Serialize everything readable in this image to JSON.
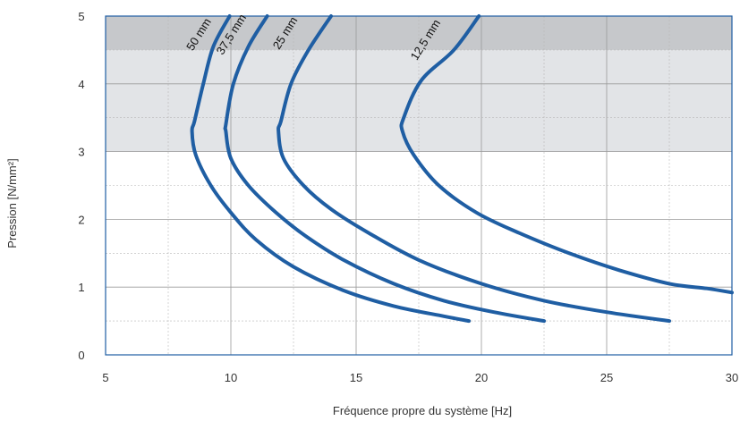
{
  "chart_data": {
    "type": "line",
    "title": "",
    "xlabel": "Fréquence propre du système [Hz]",
    "ylabel": "Pression [N/mm²]",
    "xlim": [
      5,
      30
    ],
    "ylim": [
      0,
      5
    ],
    "x_ticks": [
      5,
      10,
      15,
      20,
      25,
      30
    ],
    "x_tick_labels": [
      "5",
      "10",
      "15",
      "20",
      "25",
      "30"
    ],
    "y_ticks": [
      0,
      1,
      2,
      3,
      4,
      5
    ],
    "y_tick_labels": [
      "0",
      "1",
      "2",
      "3",
      "4",
      "5"
    ],
    "x_minor_step": 2.5,
    "y_minor_step": 0.5,
    "grid": true,
    "bands": [
      {
        "y_from": 3.0,
        "y_to": 4.5,
        "color": "#e2e4e7"
      },
      {
        "y_from": 4.5,
        "y_to": 5.0,
        "color": "#c6c8cb"
      }
    ],
    "line_color": "#1f5ea3",
    "series": [
      {
        "name": "50 mm",
        "points": [
          [
            9.95,
            5.0
          ],
          [
            9.3,
            4.55
          ],
          [
            8.9,
            4.0
          ],
          [
            8.55,
            3.45
          ],
          [
            8.45,
            3.3
          ],
          [
            8.6,
            2.95
          ],
          [
            9.2,
            2.5
          ],
          [
            10.0,
            2.1
          ],
          [
            11.0,
            1.7
          ],
          [
            12.5,
            1.3
          ],
          [
            14.5,
            0.95
          ],
          [
            16.5,
            0.72
          ],
          [
            18.5,
            0.57
          ],
          [
            19.5,
            0.5
          ]
        ]
      },
      {
        "name": "37,5 mm",
        "points": [
          [
            11.45,
            5.0
          ],
          [
            10.7,
            4.55
          ],
          [
            10.1,
            4.0
          ],
          [
            9.8,
            3.4
          ],
          [
            9.8,
            3.3
          ],
          [
            10.0,
            2.9
          ],
          [
            10.7,
            2.5
          ],
          [
            11.8,
            2.1
          ],
          [
            13.0,
            1.75
          ],
          [
            14.5,
            1.4
          ],
          [
            16.5,
            1.05
          ],
          [
            18.5,
            0.8
          ],
          [
            20.5,
            0.63
          ],
          [
            22.5,
            0.5
          ]
        ]
      },
      {
        "name": "25 mm",
        "points": [
          [
            14.0,
            5.0
          ],
          [
            13.1,
            4.5
          ],
          [
            12.4,
            4.0
          ],
          [
            12.0,
            3.45
          ],
          [
            11.9,
            3.3
          ],
          [
            12.1,
            2.9
          ],
          [
            12.9,
            2.5
          ],
          [
            14.0,
            2.15
          ],
          [
            15.5,
            1.8
          ],
          [
            17.5,
            1.4
          ],
          [
            20.0,
            1.05
          ],
          [
            22.5,
            0.8
          ],
          [
            25.0,
            0.63
          ],
          [
            27.5,
            0.5
          ]
        ]
      },
      {
        "name": "12,5 mm",
        "points": [
          [
            19.9,
            5.0
          ],
          [
            18.9,
            4.5
          ],
          [
            17.6,
            4.05
          ],
          [
            16.9,
            3.5
          ],
          [
            16.85,
            3.3
          ],
          [
            17.3,
            2.95
          ],
          [
            18.3,
            2.5
          ],
          [
            19.8,
            2.1
          ],
          [
            21.5,
            1.8
          ],
          [
            23.5,
            1.5
          ],
          [
            25.5,
            1.25
          ],
          [
            27.5,
            1.05
          ],
          [
            29.0,
            0.98
          ],
          [
            30.0,
            0.92
          ]
        ]
      }
    ],
    "curve_labels": [
      {
        "text": "50 mm",
        "series": 0
      },
      {
        "text": "37,5 mm",
        "series": 1
      },
      {
        "text": "25 mm",
        "series": 2
      },
      {
        "text": "12,5 mm",
        "series": 3
      }
    ]
  }
}
